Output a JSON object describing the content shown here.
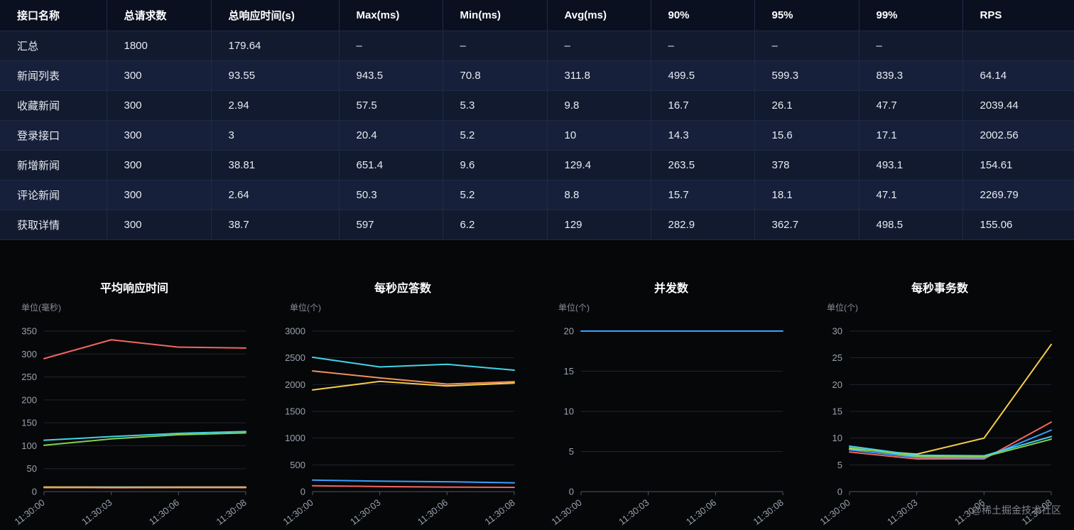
{
  "table": {
    "headers": [
      "接口名称",
      "总请求数",
      "总响应时间(s)",
      "Max(ms)",
      "Min(ms)",
      "Avg(ms)",
      "90%",
      "95%",
      "99%",
      "RPS"
    ],
    "rows": [
      [
        "汇总",
        "1800",
        "179.64",
        "–",
        "–",
        "–",
        "–",
        "–",
        "–",
        ""
      ],
      [
        "新闻列表",
        "300",
        "93.55",
        "943.5",
        "70.8",
        "311.8",
        "499.5",
        "599.3",
        "839.3",
        "64.14"
      ],
      [
        "收藏新闻",
        "300",
        "2.94",
        "57.5",
        "5.3",
        "9.8",
        "16.7",
        "26.1",
        "47.7",
        "2039.44"
      ],
      [
        "登录接口",
        "300",
        "3",
        "20.4",
        "5.2",
        "10",
        "14.3",
        "15.6",
        "17.1",
        "2002.56"
      ],
      [
        "新增新闻",
        "300",
        "38.81",
        "651.4",
        "9.6",
        "129.4",
        "263.5",
        "378",
        "493.1",
        "154.61"
      ],
      [
        "评论新闻",
        "300",
        "2.64",
        "50.3",
        "5.2",
        "8.8",
        "15.7",
        "18.1",
        "47.1",
        "2269.79"
      ],
      [
        "获取详情",
        "300",
        "38.7",
        "597",
        "6.2",
        "129",
        "282.9",
        "362.7",
        "498.5",
        "155.06"
      ]
    ]
  },
  "watermark": "@稀土掘金技术社区",
  "chart_data": [
    {
      "type": "line",
      "title": "平均响应时间",
      "unit_label": "单位(毫秒)",
      "xlabel": "",
      "ylabel": "毫秒",
      "grid": true,
      "legend_position": "none",
      "categories": [
        "11:30:00",
        "11:30:03",
        "11:30:06",
        "11:30:08"
      ],
      "yticks": [
        0,
        50,
        100,
        150,
        200,
        250,
        300,
        350
      ],
      "ylim": [
        0,
        350
      ],
      "series": [
        {
          "color": "#f2665f",
          "values": [
            290,
            331,
            315,
            313
          ]
        },
        {
          "color": "#42d4e8",
          "values": [
            112,
            120,
            127,
            131
          ]
        },
        {
          "color": "#82d24e",
          "values": [
            101,
            115,
            124,
            128
          ]
        },
        {
          "color": "#3aa1ff",
          "values": [
            10,
            10,
            10,
            10
          ]
        },
        {
          "color": "#f8cf45",
          "values": [
            9.8,
            9.5,
            9.7,
            9.6
          ]
        },
        {
          "color": "#f0915a",
          "values": [
            8.8,
            8.6,
            8.7,
            8.8
          ]
        }
      ]
    },
    {
      "type": "line",
      "title": "每秒应答数",
      "unit_label": "单位(个)",
      "xlabel": "",
      "ylabel": "个",
      "grid": true,
      "legend_position": "none",
      "categories": [
        "11:30:00",
        "11:30:03",
        "11:30:06",
        "11:30:08"
      ],
      "yticks": [
        0,
        500,
        1000,
        1500,
        2000,
        2500,
        3000
      ],
      "ylim": [
        0,
        3000
      ],
      "series": [
        {
          "color": "#42d4e8",
          "values": [
            2510,
            2330,
            2380,
            2270
          ]
        },
        {
          "color": "#f0915a",
          "values": [
            2255,
            2125,
            2010,
            2055
          ]
        },
        {
          "color": "#f8cf45",
          "values": [
            1900,
            2060,
            1975,
            2030
          ]
        },
        {
          "color": "#3aa1ff",
          "values": [
            215,
            195,
            185,
            165
          ]
        },
        {
          "color": "#f2665f",
          "values": [
            110,
            95,
            85,
            80
          ]
        }
      ]
    },
    {
      "type": "line",
      "title": "并发数",
      "unit_label": "单位(个)",
      "xlabel": "",
      "ylabel": "个",
      "grid": true,
      "legend_position": "none",
      "categories": [
        "11:30:00",
        "11:30:03",
        "11:30:06",
        "11:30:08"
      ],
      "yticks": [
        0,
        5,
        10,
        15,
        20
      ],
      "ylim": [
        0,
        20
      ],
      "series": [
        {
          "color": "#3aa1ff",
          "values": [
            20,
            20,
            20,
            20
          ]
        }
      ]
    },
    {
      "type": "line",
      "title": "每秒事务数",
      "unit_label": "单位(个)",
      "xlabel": "",
      "ylabel": "个",
      "grid": true,
      "legend_position": "none",
      "categories": [
        "11:30:00",
        "11:30:03",
        "11:30:06",
        "11:30:08"
      ],
      "yticks": [
        0,
        5,
        10,
        15,
        20,
        25,
        30
      ],
      "ylim": [
        0,
        30
      ],
      "series": [
        {
          "color": "#f8cf45",
          "values": [
            8,
            7,
            10,
            27.5
          ]
        },
        {
          "color": "#f2665f",
          "values": [
            7.4,
            6.1,
            6.1,
            13
          ]
        },
        {
          "color": "#3aa1ff",
          "values": [
            7.8,
            6.4,
            6.3,
            11.5
          ]
        },
        {
          "color": "#42d4e8",
          "values": [
            8.5,
            6.8,
            6.7,
            10.3
          ]
        },
        {
          "color": "#82d24e",
          "values": [
            8.2,
            6.6,
            6.5,
            9.8
          ]
        }
      ]
    }
  ]
}
